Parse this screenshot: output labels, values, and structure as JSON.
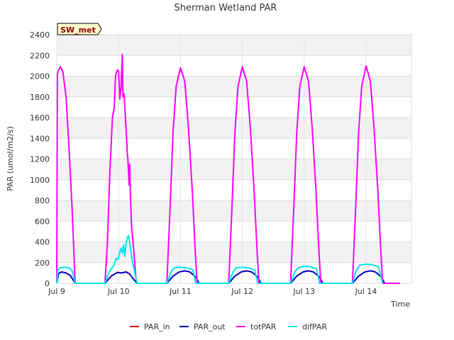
{
  "chart_data": {
    "type": "line",
    "title": "Sherman Wetland PAR",
    "badge": "SW_met",
    "xlabel": "Time",
    "ylabel": "PAR (umol/m2/s)",
    "ylim": [
      0,
      2400
    ],
    "yticks": [
      0,
      200,
      400,
      600,
      800,
      1000,
      1200,
      1400,
      1600,
      1800,
      2000,
      2200,
      2400
    ],
    "xlim": [
      0,
      6
    ],
    "xticks": [
      {
        "x": 0,
        "label": "Jul 9"
      },
      {
        "x": 1,
        "label": "Jul 10"
      },
      {
        "x": 2,
        "label": "Jul 11"
      },
      {
        "x": 3,
        "label": "Jul 12"
      },
      {
        "x": 4,
        "label": "Jul 13"
      },
      {
        "x": 5,
        "label": "Jul 14"
      }
    ],
    "grid": true,
    "legend_position": "bottom",
    "series": [
      {
        "name": "PAR_in",
        "color": "#dd0000",
        "points": []
      },
      {
        "name": "PAR_out",
        "color": "#0000bb",
        "points": [
          [
            0.0,
            0
          ],
          [
            0.03,
            95
          ],
          [
            0.08,
            110
          ],
          [
            0.15,
            100
          ],
          [
            0.22,
            75
          ],
          [
            0.3,
            0
          ],
          [
            0.65,
            0
          ],
          [
            0.78,
            0
          ],
          [
            0.88,
            70
          ],
          [
            0.98,
            105
          ],
          [
            1.05,
            100
          ],
          [
            1.12,
            110
          ],
          [
            1.18,
            90
          ],
          [
            1.22,
            55
          ],
          [
            1.3,
            0
          ],
          [
            1.78,
            0
          ],
          [
            1.88,
            70
          ],
          [
            1.98,
            110
          ],
          [
            2.07,
            120
          ],
          [
            2.15,
            110
          ],
          [
            2.25,
            60
          ],
          [
            2.3,
            0
          ],
          [
            2.78,
            0
          ],
          [
            2.88,
            70
          ],
          [
            2.98,
            110
          ],
          [
            3.07,
            120
          ],
          [
            3.15,
            110
          ],
          [
            3.25,
            60
          ],
          [
            3.3,
            0
          ],
          [
            3.78,
            0
          ],
          [
            3.88,
            70
          ],
          [
            3.98,
            110
          ],
          [
            4.07,
            120
          ],
          [
            4.15,
            110
          ],
          [
            4.25,
            60
          ],
          [
            4.3,
            0
          ],
          [
            4.78,
            0
          ],
          [
            4.88,
            70
          ],
          [
            4.98,
            110
          ],
          [
            5.07,
            120
          ],
          [
            5.15,
            110
          ],
          [
            5.25,
            60
          ],
          [
            5.3,
            0
          ]
        ]
      },
      {
        "name": "totPAR",
        "color": "#ff00ff",
        "points": [
          [
            0.0,
            0
          ],
          [
            0.01,
            2020
          ],
          [
            0.03,
            2060
          ],
          [
            0.06,
            2090
          ],
          [
            0.1,
            2040
          ],
          [
            0.15,
            1800
          ],
          [
            0.2,
            1300
          ],
          [
            0.25,
            700
          ],
          [
            0.29,
            100
          ],
          [
            0.3,
            0
          ],
          [
            0.78,
            0
          ],
          [
            0.82,
            400
          ],
          [
            0.86,
            1100
          ],
          [
            0.9,
            1600
          ],
          [
            0.93,
            1700
          ],
          [
            0.95,
            2000
          ],
          [
            0.98,
            2060
          ],
          [
            1.0,
            2050
          ],
          [
            1.02,
            1780
          ],
          [
            1.04,
            1900
          ],
          [
            1.06,
            2210
          ],
          [
            1.07,
            1800
          ],
          [
            1.09,
            1830
          ],
          [
            1.1,
            1700
          ],
          [
            1.12,
            1500
          ],
          [
            1.14,
            1260
          ],
          [
            1.15,
            1200
          ],
          [
            1.17,
            950
          ],
          [
            1.18,
            1150
          ],
          [
            1.19,
            850
          ],
          [
            1.21,
            550
          ],
          [
            1.24,
            350
          ],
          [
            1.28,
            50
          ],
          [
            1.3,
            0
          ],
          [
            1.78,
            0
          ],
          [
            1.83,
            700
          ],
          [
            1.88,
            1450
          ],
          [
            1.93,
            1900
          ],
          [
            2.0,
            2080
          ],
          [
            2.07,
            1950
          ],
          [
            2.13,
            1500
          ],
          [
            2.19,
            900
          ],
          [
            2.24,
            300
          ],
          [
            2.27,
            0
          ],
          [
            2.78,
            0
          ],
          [
            2.83,
            700
          ],
          [
            2.88,
            1450
          ],
          [
            2.93,
            1900
          ],
          [
            3.0,
            2090
          ],
          [
            3.07,
            1950
          ],
          [
            3.13,
            1500
          ],
          [
            3.19,
            900
          ],
          [
            3.24,
            300
          ],
          [
            3.27,
            0
          ],
          [
            3.78,
            0
          ],
          [
            3.83,
            700
          ],
          [
            3.88,
            1450
          ],
          [
            3.93,
            1900
          ],
          [
            4.0,
            2090
          ],
          [
            4.07,
            1950
          ],
          [
            4.13,
            1500
          ],
          [
            4.19,
            900
          ],
          [
            4.24,
            300
          ],
          [
            4.27,
            0
          ],
          [
            4.78,
            0
          ],
          [
            4.83,
            700
          ],
          [
            4.88,
            1450
          ],
          [
            4.93,
            1900
          ],
          [
            5.0,
            2100
          ],
          [
            5.07,
            1950
          ],
          [
            5.13,
            1500
          ],
          [
            5.19,
            900
          ],
          [
            5.24,
            300
          ],
          [
            5.27,
            0
          ],
          [
            5.55,
            0
          ]
        ]
      },
      {
        "name": "difPAR",
        "color": "#00e5ee",
        "points": [
          [
            0.0,
            0
          ],
          [
            0.02,
            130
          ],
          [
            0.05,
            150
          ],
          [
            0.12,
            155
          ],
          [
            0.2,
            150
          ],
          [
            0.25,
            120
          ],
          [
            0.3,
            0
          ],
          [
            0.78,
            0
          ],
          [
            0.83,
            90
          ],
          [
            0.88,
            140
          ],
          [
            0.93,
            180
          ],
          [
            0.96,
            240
          ],
          [
            0.99,
            230
          ],
          [
            1.02,
            300
          ],
          [
            1.04,
            340
          ],
          [
            1.06,
            290
          ],
          [
            1.08,
            370
          ],
          [
            1.1,
            260
          ],
          [
            1.12,
            380
          ],
          [
            1.14,
            440
          ],
          [
            1.16,
            460
          ],
          [
            1.18,
            390
          ],
          [
            1.2,
            300
          ],
          [
            1.22,
            220
          ],
          [
            1.28,
            50
          ],
          [
            1.3,
            0
          ],
          [
            1.78,
            0
          ],
          [
            1.85,
            110
          ],
          [
            1.9,
            150
          ],
          [
            2.0,
            155
          ],
          [
            2.1,
            150
          ],
          [
            2.2,
            130
          ],
          [
            2.25,
            0
          ],
          [
            2.78,
            0
          ],
          [
            2.85,
            110
          ],
          [
            2.9,
            150
          ],
          [
            3.0,
            155
          ],
          [
            3.1,
            150
          ],
          [
            3.2,
            130
          ],
          [
            3.25,
            0
          ],
          [
            3.78,
            0
          ],
          [
            3.85,
            110
          ],
          [
            3.9,
            150
          ],
          [
            4.0,
            165
          ],
          [
            4.1,
            160
          ],
          [
            4.2,
            140
          ],
          [
            4.25,
            0
          ],
          [
            4.78,
            0
          ],
          [
            4.84,
            120
          ],
          [
            4.9,
            175
          ],
          [
            5.0,
            185
          ],
          [
            5.1,
            180
          ],
          [
            5.2,
            160
          ],
          [
            5.27,
            0
          ]
        ]
      }
    ]
  }
}
